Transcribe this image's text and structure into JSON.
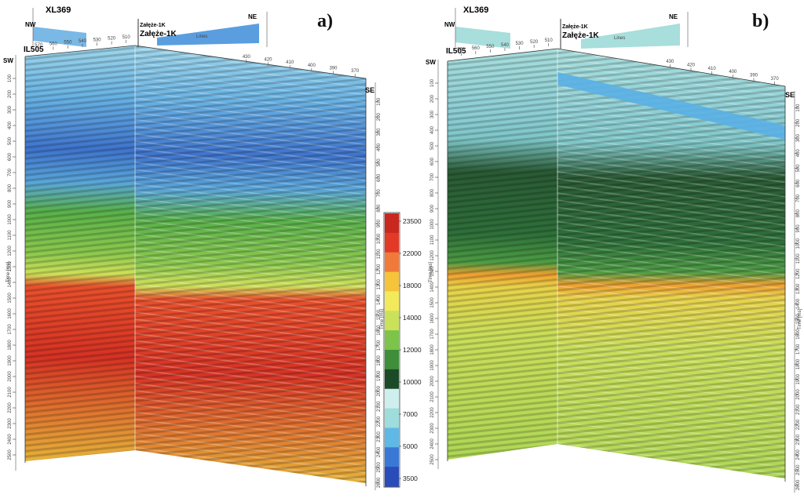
{
  "panels": [
    {
      "letter": "a)",
      "crossline": "XL369",
      "inline": "IL505",
      "well_top": "Załęże-1K",
      "well_bottom": "Załęże-1K",
      "compass": {
        "nw": "NW",
        "ne": "NE",
        "sw": "SW",
        "se": "SE"
      },
      "time_label": "Time [ms]",
      "top_ticks_left": [
        "570",
        "560",
        "550",
        "540",
        "530",
        "520",
        "510"
      ],
      "top_ticks_right": [
        "430",
        "420",
        "410",
        "400",
        "390",
        "370"
      ],
      "xline_ticks": [
        "570",
        "560",
        "550",
        "540",
        "530"
      ],
      "ne_ticks": [
        "530",
        "520",
        "510",
        "490",
        "480"
      ],
      "lines_label": "Lines",
      "left_depth_ticks": [
        "100",
        "200",
        "300",
        "400",
        "500",
        "600",
        "700",
        "800",
        "900",
        "1000",
        "1100",
        "1200",
        "1300",
        "1400",
        "1500",
        "1600",
        "1700",
        "1800",
        "1900",
        "2000",
        "2100",
        "2200",
        "2300",
        "2400",
        "2500"
      ],
      "right_depth_ticks": [
        "100",
        "200",
        "300",
        "400",
        "500",
        "600",
        "700",
        "800",
        "900",
        "1000",
        "1100",
        "1200",
        "1300",
        "1400",
        "1500",
        "1600",
        "1700",
        "1800",
        "1900",
        "2000",
        "2100",
        "2200",
        "2300",
        "2400",
        "2500",
        "2600"
      ]
    },
    {
      "letter": "b)",
      "crossline": "XL369",
      "inline": "IL505",
      "well_top": "Załęże-1K",
      "well_bottom": "Załęże-1K",
      "compass": {
        "nw": "NW",
        "ne": "NE",
        "sw": "SW",
        "se": "SE"
      },
      "time_label": "Time [ms]",
      "top_ticks_left": [
        "570",
        "560",
        "550",
        "540",
        "530",
        "520",
        "510"
      ],
      "top_ticks_right": [
        "430",
        "420",
        "410",
        "400",
        "390",
        "370"
      ],
      "xline_ticks": [
        "570",
        "560",
        "550",
        "540",
        "530"
      ],
      "ne_ticks": [
        "530",
        "520",
        "510",
        "490",
        "480"
      ],
      "lines_label": "Lines",
      "left_depth_ticks": [
        "100",
        "200",
        "300",
        "400",
        "500",
        "600",
        "700",
        "800",
        "900",
        "1000",
        "1100",
        "1200",
        "1300",
        "1400",
        "1500",
        "1600",
        "1700",
        "1800",
        "1900",
        "2000",
        "2100",
        "2200",
        "2300",
        "2400",
        "2500"
      ],
      "right_depth_ticks": [
        "100",
        "200",
        "300",
        "400",
        "500",
        "600",
        "700",
        "800",
        "900",
        "1000",
        "1100",
        "1200",
        "1300",
        "1400",
        "1500",
        "1600",
        "1700",
        "1800",
        "1900",
        "2000",
        "2100",
        "2200",
        "2300",
        "2400",
        "2500",
        "2600"
      ]
    }
  ],
  "colorbar": {
    "labels": [
      "23500",
      "22000",
      "18000",
      "14000",
      "12000",
      "10000",
      "7000",
      "5000",
      "3500"
    ],
    "colors": [
      "#c8281e",
      "#e23a26",
      "#f07a3a",
      "#f6c43a",
      "#f2ea5a",
      "#c9e25a",
      "#7cc44a",
      "#3e8e3a",
      "#1c4a26",
      "#cfeeee",
      "#9fdcdc",
      "#5fb8e6",
      "#3a78d6",
      "#2a4cb8"
    ]
  }
}
